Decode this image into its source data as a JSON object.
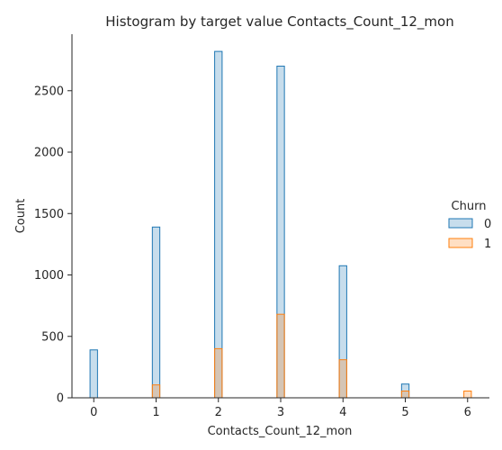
{
  "chart_data": {
    "type": "bar",
    "title": "Histogram by target value Contacts_Count_12_mon",
    "xlabel": "Contacts_Count_12_mon",
    "ylabel": "Count",
    "xlim": [
      -0.35,
      6.35
    ],
    "ylim": [
      0,
      2960
    ],
    "xticks": [
      0,
      1,
      2,
      3,
      4,
      5,
      6
    ],
    "yticks": [
      0,
      500,
      1000,
      1500,
      2000,
      2500
    ],
    "bin_width": 0.12,
    "grid": false,
    "legend": {
      "title": "Churn",
      "placement": "right"
    },
    "series": [
      {
        "name": "0",
        "color": "#1f77b4",
        "x": [
          0,
          1,
          2,
          3,
          4,
          5
        ],
        "values": [
          390,
          1390,
          2820,
          2700,
          1075,
          112
        ]
      },
      {
        "name": "1",
        "color": "#ff7f0e",
        "x": [
          1,
          2,
          3,
          4,
          5,
          6
        ],
        "values": [
          105,
          400,
          680,
          310,
          55,
          55
        ]
      }
    ]
  }
}
